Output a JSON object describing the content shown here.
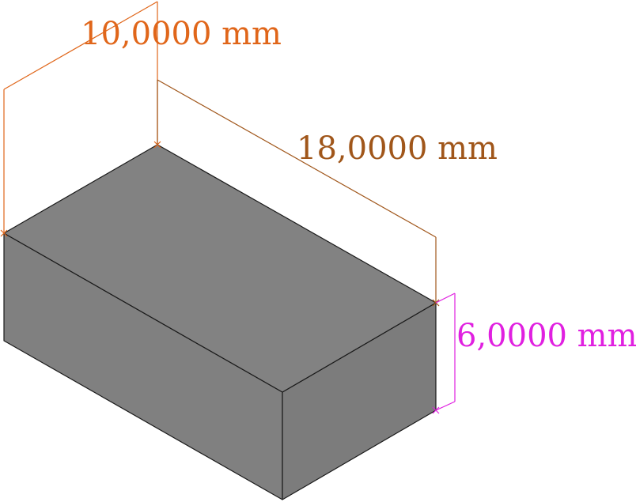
{
  "dimensions": {
    "width": {
      "label": "10,0000 mm",
      "color": "#e0661a"
    },
    "length": {
      "label": "18,0000 mm",
      "color": "#a0561a"
    },
    "height": {
      "label": "6,0000 mm",
      "color": "#e020e0"
    }
  },
  "box": {
    "top_color": "#828282",
    "left_color": "#808080",
    "right_color": "#7c7c7c",
    "edge_color": "#1a1a1a"
  }
}
